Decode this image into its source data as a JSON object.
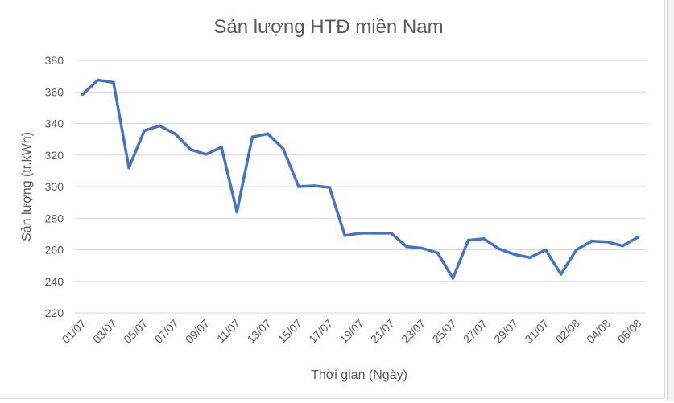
{
  "chart_data": {
    "type": "line",
    "title": "Sản lượng HTĐ miền Nam",
    "xlabel": "Thời gian (Ngày)",
    "ylabel": "Sản lượng (tr.kWh)",
    "ylim": [
      220,
      380
    ],
    "yticks": [
      220,
      240,
      260,
      280,
      300,
      320,
      340,
      360,
      380
    ],
    "grid": true,
    "legend": "none",
    "line_color": "#4472C4",
    "x_tick_labels": [
      "01/07",
      "03/07",
      "05/07",
      "07/07",
      "09/07",
      "11/07",
      "13/07",
      "15/07",
      "17/07",
      "19/07",
      "21/07",
      "23/07",
      "25/07",
      "27/07",
      "29/07",
      "31/07",
      "02/08",
      "04/08",
      "06/08"
    ],
    "x": [
      "01/07",
      "02/07",
      "03/07",
      "04/07",
      "05/07",
      "06/07",
      "07/07",
      "08/07",
      "09/07",
      "10/07",
      "11/07",
      "12/07",
      "13/07",
      "14/07",
      "15/07",
      "16/07",
      "17/07",
      "18/07",
      "19/07",
      "20/07",
      "21/07",
      "22/07",
      "23/07",
      "24/07",
      "25/07",
      "26/07",
      "27/07",
      "28/07",
      "29/07",
      "30/07",
      "31/07",
      "01/08",
      "02/08",
      "03/08",
      "04/08",
      "05/08",
      "06/08"
    ],
    "series": [
      {
        "values": [
          358.5,
          367.5,
          366,
          312,
          335.5,
          338.5,
          333.5,
          323.5,
          320.5,
          325,
          284,
          331.5,
          333.5,
          324,
          300,
          300.5,
          299.5,
          269,
          270.5,
          270.5,
          270.5,
          262,
          261,
          258,
          242,
          266,
          267,
          260.5,
          257,
          255,
          260,
          244.5,
          260,
          265.5,
          265,
          262.5,
          268
        ]
      }
    ]
  }
}
